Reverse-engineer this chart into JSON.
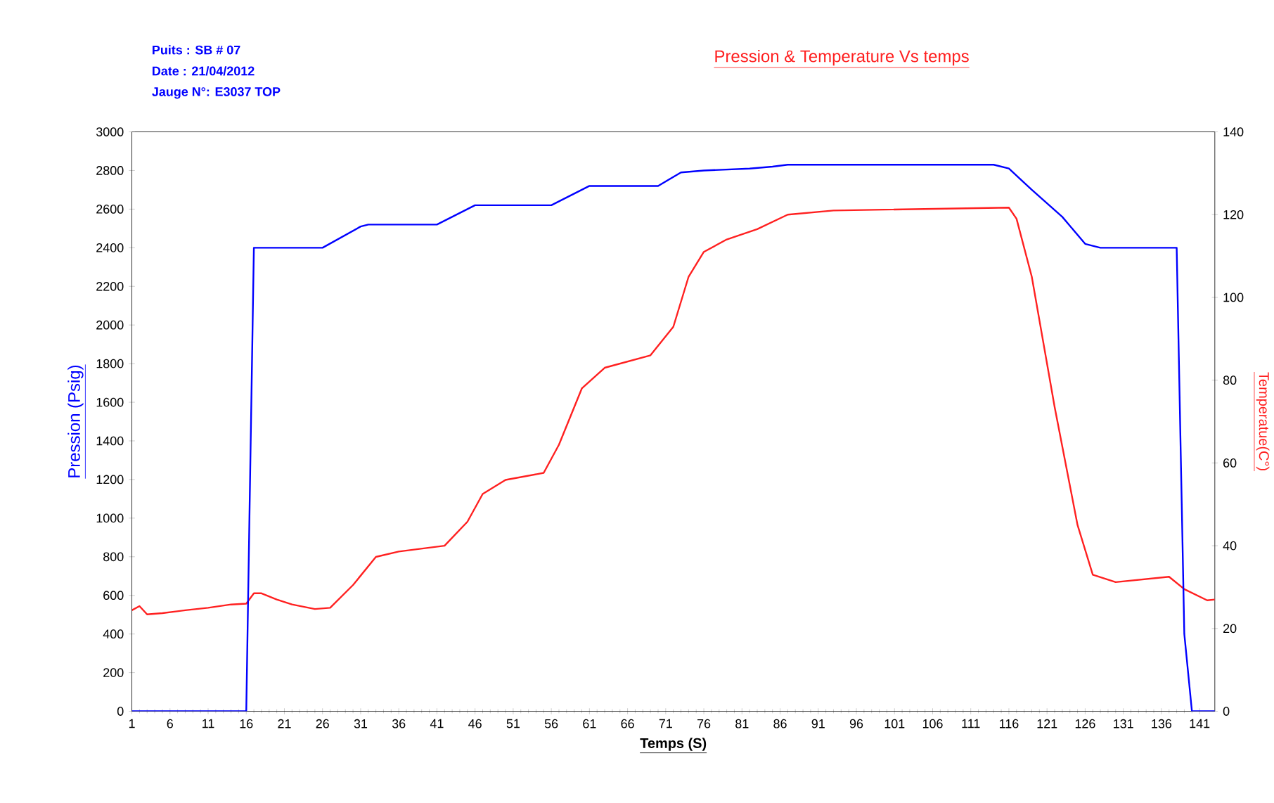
{
  "chart_data": {
    "type": "line",
    "title": "Pression & Temperature Vs temps",
    "annotations": [
      "Puits : SB # 07",
      "Date  : 21/04/2012",
      "Jauge  N°: E3037 TOP"
    ],
    "xlabel": "Temps  (S)",
    "ylabel": "Pression (Psig)",
    "y2label": "Temperatue(C°)",
    "xlim": [
      1,
      143
    ],
    "xticks": [
      1,
      6,
      11,
      16,
      21,
      26,
      31,
      36,
      41,
      46,
      51,
      56,
      61,
      66,
      71,
      76,
      81,
      86,
      91,
      96,
      101,
      106,
      111,
      116,
      121,
      126,
      131,
      136,
      141
    ],
    "ylim": [
      0,
      3000
    ],
    "yticks": [
      0,
      200,
      400,
      600,
      800,
      1000,
      1200,
      1400,
      1600,
      1800,
      2000,
      2200,
      2400,
      2600,
      2800,
      3000
    ],
    "y2lim": [
      0,
      140
    ],
    "y2ticks": [
      0,
      20,
      40,
      60,
      80,
      100,
      120,
      140
    ],
    "marker": "none",
    "line_style": "solid",
    "series": [
      {
        "color": "#0000ff",
        "x": [
          1,
          16,
          17,
          26,
          31,
          32,
          41,
          46,
          56,
          61,
          70,
          73,
          76,
          82,
          85,
          87,
          114,
          116,
          119,
          123,
          126,
          128,
          138,
          139,
          140,
          143
        ],
        "values": [
          0,
          0,
          2400,
          2400,
          2510,
          2520,
          2520,
          2620,
          2620,
          2720,
          2720,
          2790,
          2800,
          2810,
          2820,
          2830,
          2830,
          2810,
          2700,
          2560,
          2420,
          2400,
          2400,
          400,
          0,
          0
        ]
      },
      {
        "color": "#ff2020",
        "axis": "y2",
        "x": [
          1,
          2,
          3,
          5,
          8,
          11,
          14,
          16,
          17,
          18,
          20,
          22,
          25,
          27,
          30,
          33,
          36,
          42,
          45,
          47,
          50,
          55,
          57,
          60,
          63,
          69,
          72,
          74,
          76,
          79,
          83,
          87,
          93,
          116,
          117,
          119,
          122,
          125,
          127,
          130,
          137,
          139,
          142,
          143
        ],
        "values": [
          24.4,
          25.4,
          23.4,
          23.7,
          24.4,
          25,
          25.8,
          26,
          28.5,
          28.5,
          27,
          25.8,
          24.7,
          25,
          30.5,
          37.3,
          38.6,
          40,
          45.8,
          52.5,
          55.9,
          57.6,
          64.4,
          78,
          83,
          86,
          92.9,
          105,
          111,
          114,
          116.5,
          120,
          121,
          121.7,
          119,
          105,
          73.5,
          45,
          33,
          31.2,
          32.5,
          29.5,
          26.8,
          27
        ]
      }
    ]
  }
}
